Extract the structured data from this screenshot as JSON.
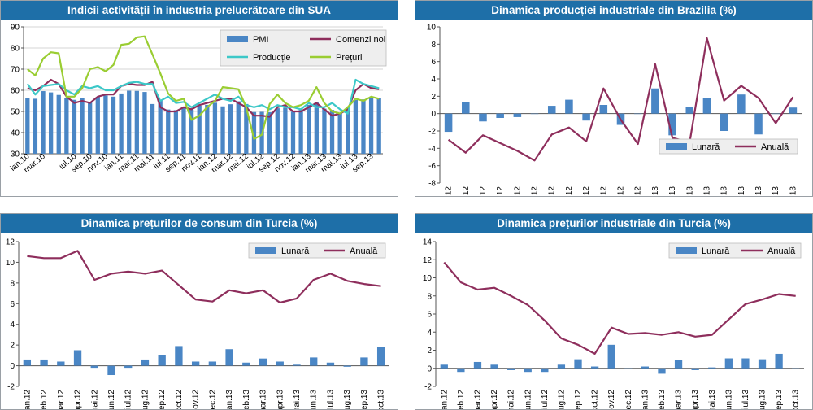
{
  "chart_data": [
    {
      "id": "usa",
      "type": "bar+line",
      "title": "Indicii activității în industria prelucrătoare din SUA",
      "ylim": [
        30,
        90
      ],
      "yticks": [
        30,
        40,
        50,
        60,
        70,
        80,
        90
      ],
      "grid": true,
      "categories": [
        "ian.10",
        "feb.10",
        "mar.10",
        "apr.10",
        "mai.10",
        "iun.10",
        "iul.10",
        "aug.10",
        "sep.10",
        "oct.10",
        "nov.10",
        "dec.10",
        "ian.11",
        "feb.11",
        "mar.11",
        "apr.11",
        "mai.11",
        "iun.11",
        "iul.11",
        "aug.11",
        "sep.11",
        "oct.11",
        "nov.11",
        "dec.11",
        "ian.12",
        "feb.12",
        "mar.12",
        "apr.12",
        "mai.12",
        "iun.12",
        "iul.12",
        "aug.12",
        "sep.12",
        "oct.12",
        "nov.12",
        "dec.12",
        "ian.13",
        "feb.13",
        "mar.13",
        "apr.13",
        "mai.13",
        "iun.13",
        "iul.13",
        "aug.13",
        "sep.13",
        "oct.13"
      ],
      "xtick_labels": [
        "ian.10",
        "mar.10",
        "iul.10",
        "sep.10",
        "nov.10",
        "ian.11",
        "mar.11",
        "mai.11",
        "iul.11",
        "sep.11",
        "nov.11",
        "ian.12",
        "mar.12",
        "mai.12",
        "iul.12",
        "sep.12",
        "nov.12",
        "ian.13",
        "mar.13",
        "mai.13",
        "iul.13",
        "sep.13"
      ],
      "legend": [
        {
          "label": "PMI",
          "kind": "bar",
          "color": "#4a86c5"
        },
        {
          "label": "Comenzi noi",
          "kind": "line",
          "color": "#8e2e5c"
        },
        {
          "label": "Producție",
          "kind": "line",
          "color": "#3cc8c8"
        },
        {
          "label": "Prețuri",
          "kind": "line",
          "color": "#9acd32"
        }
      ],
      "series": [
        {
          "name": "PMI",
          "kind": "bar",
          "color": "#4a86c5",
          "values": [
            56.5,
            56.0,
            59.6,
            59.0,
            57.8,
            56.2,
            55.5,
            56.3,
            54.4,
            56.9,
            57.6,
            57.0,
            58.5,
            59.8,
            59.7,
            59.2,
            53.5,
            55.3,
            50.9,
            50.6,
            51.6,
            50.8,
            52.7,
            53.1,
            54.1,
            52.4,
            53.4,
            54.8,
            53.5,
            49.7,
            49.8,
            49.6,
            51.5,
            51.7,
            49.9,
            50.7,
            53.1,
            54.2,
            51.3,
            50.7,
            49.0,
            50.9,
            55.4,
            55.7,
            56.2,
            56.4
          ]
        },
        {
          "name": "Comenzi noi",
          "kind": "line",
          "color": "#8e2e5c",
          "values": [
            61,
            60,
            62,
            65,
            63,
            57,
            54,
            55,
            54,
            57,
            58,
            58,
            62,
            63,
            62.5,
            62.5,
            64,
            52,
            50,
            50,
            52,
            51,
            53,
            54,
            55,
            56,
            56,
            54,
            52,
            48,
            48,
            47.5,
            52,
            53,
            50,
            50,
            52,
            54,
            51,
            48,
            49,
            51,
            60,
            63,
            61,
            60.5
          ]
        },
        {
          "name": "Producție",
          "kind": "line",
          "color": "#3cc8c8",
          "values": [
            63,
            58,
            62,
            62.5,
            63,
            60,
            58,
            62,
            61,
            62,
            60,
            60,
            62,
            63.5,
            64,
            63,
            63,
            55,
            57,
            54,
            54.5,
            52,
            54,
            56,
            58,
            56,
            55,
            57,
            53,
            52,
            53,
            51,
            53,
            52,
            52,
            51,
            54,
            52,
            52,
            54,
            51,
            49,
            65,
            63,
            62,
            61
          ]
        },
        {
          "name": "Prețuri",
          "kind": "line",
          "color": "#9acd32",
          "values": [
            70,
            67,
            75,
            78,
            77.5,
            57,
            57,
            61,
            70,
            71,
            69,
            72,
            81.5,
            82,
            85,
            85.5,
            77,
            68,
            58.5,
            55,
            56,
            46,
            48,
            52,
            55,
            61.5,
            61,
            60.5,
            52,
            37,
            39,
            53.5,
            58,
            54,
            52,
            53,
            55,
            61.5,
            54,
            50,
            49,
            52,
            56,
            55,
            57,
            56
          ]
        }
      ]
    },
    {
      "id": "brazil",
      "type": "bar+line",
      "title": "Dinamica producției industriale din Brazilia (%)",
      "ylim": [
        -8,
        10
      ],
      "yticks": [
        -8,
        -6,
        -4,
        -2,
        0,
        2,
        4,
        6,
        8,
        10
      ],
      "grid": false,
      "categories": [
        "ian.12",
        "feb.12",
        "mar.12",
        "apr.12",
        "mai.12",
        "iun.12",
        "iul.12",
        "aug.12",
        "sep.12",
        "oct.12",
        "nov.12",
        "dec.12",
        "ian.13",
        "feb.13",
        "mar.13",
        "apr.13",
        "mai.13",
        "iun.13",
        "iul.13",
        "aug.13",
        "sep.13"
      ],
      "xtick_labels": [
        "ian.12",
        "feb.12",
        "mar.12",
        "apr.12",
        "mai.12",
        "iun.12",
        "iul.12",
        "aug.12",
        "sep.12",
        "oct.12",
        "nov.12",
        "dec.12",
        "ian.13",
        "feb.13",
        "mar.13",
        "apr.13",
        "mai.13",
        "iun.13",
        "iul.13",
        "aug.13",
        "sep.13"
      ],
      "legend": [
        {
          "label": "Lunară",
          "kind": "bar",
          "color": "#4a86c5"
        },
        {
          "label": "Anuală",
          "kind": "line",
          "color": "#8e2e5c"
        }
      ],
      "series": [
        {
          "name": "Lunară",
          "kind": "bar",
          "color": "#4a86c5",
          "values": [
            -2.1,
            1.3,
            -0.9,
            -0.5,
            -0.4,
            0.0,
            0.9,
            1.6,
            -0.8,
            1.0,
            -1.3,
            0.0,
            2.9,
            -2.5,
            0.8,
            1.8,
            -2.0,
            2.2,
            -2.4,
            0.0,
            0.7
          ]
        },
        {
          "name": "Anuală",
          "kind": "line",
          "color": "#8e2e5c",
          "values": [
            -3.0,
            -4.5,
            -2.5,
            -3.4,
            -4.3,
            -5.4,
            -2.4,
            -1.6,
            -3.2,
            2.9,
            -0.7,
            -3.5,
            5.7,
            -2.8,
            -3.3,
            8.7,
            1.5,
            3.2,
            1.8,
            -1.1,
            1.9
          ]
        }
      ]
    },
    {
      "id": "turkey_cpi",
      "type": "bar+line",
      "title": "Dinamica prețurilor de consum din Turcia (%)",
      "ylim": [
        -2,
        12
      ],
      "yticks": [
        -2,
        0,
        2,
        4,
        6,
        8,
        10,
        12
      ],
      "grid": false,
      "categories": [
        "ian.12",
        "feb.12",
        "mar.12",
        "apr.12",
        "mai.12",
        "iun.12",
        "iul.12",
        "aug.12",
        "sep.12",
        "oct.12",
        "nov.12",
        "dec.12",
        "ian.13",
        "feb.13",
        "mar.13",
        "apr.13",
        "mai.13",
        "iun.13",
        "iul.13",
        "aug.13",
        "sep.13",
        "oct.13"
      ],
      "xtick_labels": [
        "ian.12",
        "feb.12",
        "mar.12",
        "apr.12",
        "mai.12",
        "iun.12",
        "iul.12",
        "aug.12",
        "sep.12",
        "oct.12",
        "nov.12",
        "dec.12",
        "ian.13",
        "feb.13",
        "mar.13",
        "apr.13",
        "mai.13",
        "iun.13",
        "iul.13",
        "aug.13",
        "sep.13",
        "oct.13"
      ],
      "legend": [
        {
          "label": "Lunară",
          "kind": "bar",
          "color": "#4a86c5"
        },
        {
          "label": "Anuală",
          "kind": "line",
          "color": "#8e2e5c"
        }
      ],
      "series": [
        {
          "name": "Lunară",
          "kind": "bar",
          "color": "#4a86c5",
          "values": [
            0.6,
            0.6,
            0.4,
            1.5,
            -0.2,
            -0.9,
            -0.2,
            0.6,
            1.0,
            1.9,
            0.4,
            0.4,
            1.6,
            0.3,
            0.7,
            0.4,
            0.1,
            0.8,
            0.3,
            -0.1,
            0.8,
            1.8
          ]
        },
        {
          "name": "Anuală",
          "kind": "line",
          "color": "#8e2e5c",
          "values": [
            10.6,
            10.4,
            10.4,
            11.1,
            8.3,
            8.9,
            9.1,
            8.9,
            9.2,
            7.8,
            6.4,
            6.2,
            7.3,
            7.0,
            7.3,
            6.1,
            6.5,
            8.3,
            8.9,
            8.2,
            7.9,
            7.7
          ]
        }
      ]
    },
    {
      "id": "turkey_ppi",
      "type": "bar+line",
      "title": "Dinamica prețurilor industriale din Turcia (%)",
      "ylim": [
        -2,
        14
      ],
      "yticks": [
        -2,
        0,
        2,
        4,
        6,
        8,
        10,
        12,
        14
      ],
      "grid": false,
      "categories": [
        "ian.12",
        "feb.12",
        "mar.12",
        "apr.12",
        "mai.12",
        "iun.12",
        "iul.12",
        "aug.12",
        "sep.12",
        "oct.12",
        "nov.12",
        "dec.12",
        "ian.13",
        "feb.13",
        "mar.13",
        "apr.13",
        "mai.13",
        "iun.13",
        "iul.13",
        "aug.13",
        "sep.13",
        "oct.13"
      ],
      "xtick_labels": [
        "ian.12",
        "feb.12",
        "mar.12",
        "apr.12",
        "mai.12",
        "iun.12",
        "iul.12",
        "aug.12",
        "sep.12",
        "oct.12",
        "nov.12",
        "dec.12",
        "ian.13",
        "feb.13",
        "mar.13",
        "apr.13",
        "mai.13",
        "iun.13",
        "iul.13",
        "aug.13",
        "sep.13",
        "oct.13"
      ],
      "legend": [
        {
          "label": "Lunară",
          "kind": "bar",
          "color": "#4a86c5"
        },
        {
          "label": "Anuală",
          "kind": "line",
          "color": "#8e2e5c"
        }
      ],
      "series": [
        {
          "name": "Lunară",
          "kind": "bar",
          "color": "#4a86c5",
          "values": [
            0.4,
            -0.4,
            0.7,
            0.4,
            -0.2,
            -0.4,
            -0.4,
            0.4,
            1.0,
            0.2,
            2.6,
            0.0,
            0.2,
            -0.6,
            0.9,
            -0.2,
            0.1,
            1.1,
            1.1,
            1.0,
            1.6,
            0.0
          ]
        },
        {
          "name": "Anuală",
          "kind": "line",
          "color": "#8e2e5c",
          "values": [
            11.7,
            9.5,
            8.7,
            8.9,
            8.0,
            7.0,
            5.3,
            3.3,
            2.6,
            1.6,
            4.5,
            3.8,
            3.9,
            3.7,
            4.0,
            3.5,
            3.7,
            5.4,
            7.1,
            7.6,
            8.2,
            8.0
          ]
        }
      ]
    }
  ]
}
